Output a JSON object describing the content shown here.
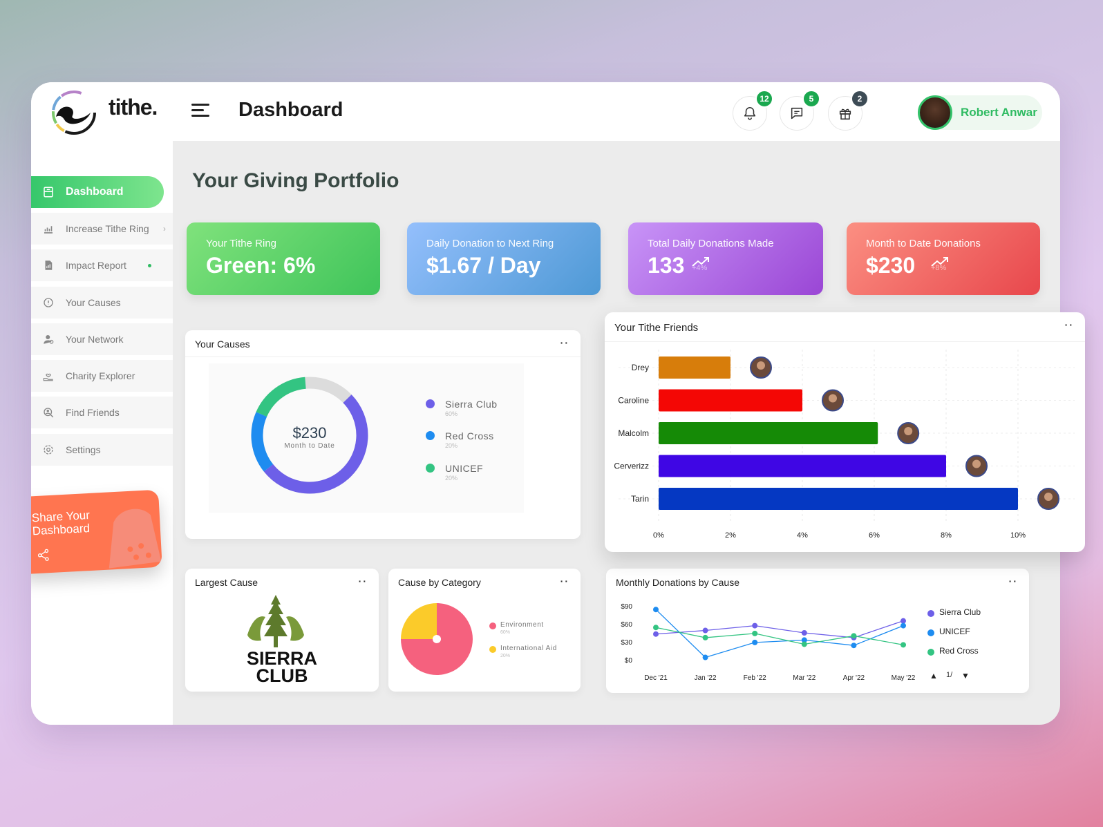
{
  "app": {
    "name": "tithe.",
    "page_title": "Dashboard"
  },
  "header": {
    "notifications": {
      "icon": "bell-icon",
      "count": "12",
      "color": "#1aa84f"
    },
    "messages": {
      "icon": "chat-icon",
      "count": "5",
      "color": "#1aa84f"
    },
    "gifts": {
      "icon": "gift-icon",
      "count": "2",
      "color": "#3d4b55"
    },
    "user_name": "Robert Anwar"
  },
  "sidebar": {
    "items": [
      {
        "label": "Dashboard",
        "icon": "dashboard-icon",
        "active": true
      },
      {
        "label": "Increase Tithe Ring",
        "icon": "bar-chart-icon"
      },
      {
        "label": "Impact Report",
        "icon": "report-icon"
      },
      {
        "label": "Your Causes",
        "icon": "info-circle-icon"
      },
      {
        "label": "Your Network",
        "icon": "network-icon"
      },
      {
        "label": "Charity Explorer",
        "icon": "hand-heart-icon"
      },
      {
        "label": "Find Friends",
        "icon": "search-person-icon"
      },
      {
        "label": "Settings",
        "icon": "gear-icon"
      }
    ],
    "share_card": {
      "title": "Share Your Dashboard",
      "icon": "share-icon"
    }
  },
  "main": {
    "section_title": "Your Giving Portfolio",
    "stats": [
      {
        "label": "Your Tithe Ring",
        "value": "Green: 6%",
        "colors": [
          "#7ee27b",
          "#3fc45a"
        ]
      },
      {
        "label": "Daily Donation to Next Ring",
        "value": "$1.67 / Day",
        "colors": [
          "#8fbcfb",
          "#4f9ad6"
        ]
      },
      {
        "label": "Total Daily Donations Made",
        "value": "133",
        "delta": "+4%",
        "colors": [
          "#c693f6",
          "#9a48d6"
        ]
      },
      {
        "label": "Month to Date Donations",
        "value": "$230",
        "delta": "+8%",
        "colors": [
          "#fb8a80",
          "#e84b4e"
        ]
      }
    ],
    "causes_card": {
      "title": "Your Causes",
      "center_value": "$230",
      "center_label": "Month to Date",
      "legend": [
        {
          "name": "Sierra Club",
          "pct": "60%",
          "color": "#6d5fe8"
        },
        {
          "name": "Red Cross",
          "pct": "20%",
          "color": "#1e8cf0"
        },
        {
          "name": "UNICEF",
          "pct": "20%",
          "color": "#33c482"
        }
      ]
    },
    "largest_cause": {
      "title": "Largest Cause",
      "logo_line1": "SIERRA",
      "logo_line2": "CLUB"
    },
    "category_card": {
      "title": "Cause by Category",
      "legend": [
        {
          "name": "Environment",
          "pct": "60%",
          "color": "#f5617e"
        },
        {
          "name": "International Aid",
          "pct": "20%",
          "color": "#fbcb2a"
        }
      ]
    },
    "friends_card": {
      "title": "Your Tithe Friends"
    },
    "monthly_card": {
      "title": "Monthly Donations by Cause",
      "pager": "1/"
    }
  },
  "chart_data": [
    {
      "type": "pie",
      "name": "Your Causes",
      "categories": [
        "Sierra Club",
        "Red Cross",
        "UNICEF"
      ],
      "values": [
        60,
        20,
        20
      ],
      "colors": [
        "#6d5fe8",
        "#1e8cf0",
        "#33c482"
      ]
    },
    {
      "type": "pie",
      "name": "Cause by Category",
      "categories": [
        "Environment",
        "International Aid"
      ],
      "values": [
        60,
        20
      ],
      "colors": [
        "#f5617e",
        "#fbcb2a"
      ]
    },
    {
      "type": "bar",
      "orientation": "horizontal",
      "name": "Your Tithe Friends",
      "categories": [
        "Drey",
        "Caroline",
        "Malcolm",
        "Cerverizz",
        "Tarin"
      ],
      "values": [
        2,
        4,
        6.1,
        8,
        10
      ],
      "colors": [
        "#d77d0b",
        "#f40705",
        "#158a06",
        "#3f06e4",
        "#0538c2"
      ],
      "xticks": [
        "0%",
        "2%",
        "4%",
        "6%",
        "8%",
        "10%"
      ],
      "xlim": [
        0,
        11
      ],
      "grid": true
    },
    {
      "type": "line",
      "name": "Monthly Donations by Cause",
      "categories": [
        "Dec '21",
        "Jan '22",
        "Feb '22",
        "Mar '22",
        "Apr '22",
        "May '22"
      ],
      "series": [
        {
          "name": "Sierra Club",
          "color": "#6d5fe8",
          "values": [
            43,
            49,
            57,
            45,
            37,
            65
          ]
        },
        {
          "name": "UNICEF",
          "color": "#1e8cf0",
          "values": [
            84,
            4,
            29,
            33,
            24,
            57
          ]
        },
        {
          "name": "Red Cross",
          "color": "#33c482",
          "values": [
            54,
            37,
            44,
            26,
            40,
            25
          ]
        }
      ],
      "yticks": [
        "$90",
        "$60",
        "$30",
        "$0"
      ],
      "ylim": [
        0,
        90
      ],
      "legend": "right"
    }
  ]
}
